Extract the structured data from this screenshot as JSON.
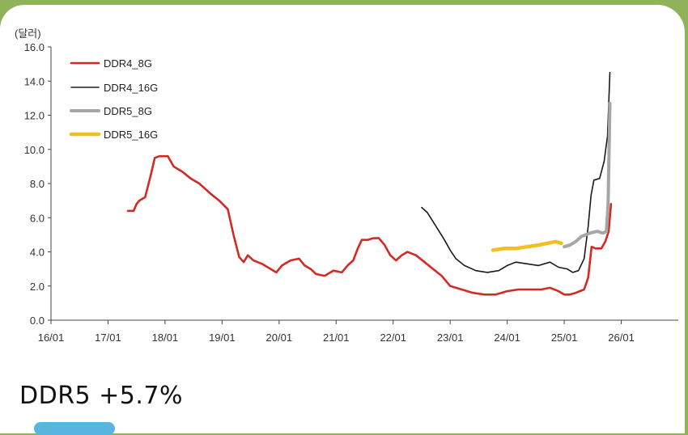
{
  "caption": "DDR5 +5.7%",
  "chart_data": {
    "type": "line",
    "unit_label": "(달러)",
    "xlabel": "",
    "ylabel": "",
    "x_tick_labels": [
      "16/01",
      "17/01",
      "18/01",
      "19/01",
      "20/01",
      "21/01",
      "22/01",
      "23/01",
      "24/01",
      "25/01",
      "26/01"
    ],
    "xlim": [
      2016.0,
      2027.0
    ],
    "y_tick_labels": [
      "0.0",
      "2.0",
      "4.0",
      "6.0",
      "8.0",
      "10.0",
      "12.0",
      "14.0",
      "16.0"
    ],
    "ylim": [
      0,
      16
    ],
    "grid": false,
    "legend_position": "top-left",
    "series": [
      {
        "name": "DDR4_8G",
        "color": "#d42a24",
        "points": [
          [
            2017.35,
            6.4
          ],
          [
            2017.45,
            6.4
          ],
          [
            2017.5,
            6.8
          ],
          [
            2017.55,
            7.0
          ],
          [
            2017.65,
            7.2
          ],
          [
            2017.75,
            8.5
          ],
          [
            2017.82,
            9.5
          ],
          [
            2017.9,
            9.6
          ],
          [
            2018.05,
            9.6
          ],
          [
            2018.15,
            9.0
          ],
          [
            2018.3,
            8.7
          ],
          [
            2018.45,
            8.3
          ],
          [
            2018.6,
            8.0
          ],
          [
            2018.8,
            7.4
          ],
          [
            2018.95,
            7.0
          ],
          [
            2019.1,
            6.5
          ],
          [
            2019.2,
            5.0
          ],
          [
            2019.3,
            3.7
          ],
          [
            2019.38,
            3.4
          ],
          [
            2019.45,
            3.8
          ],
          [
            2019.55,
            3.5
          ],
          [
            2019.7,
            3.3
          ],
          [
            2019.85,
            3.0
          ],
          [
            2019.95,
            2.8
          ],
          [
            2020.05,
            3.2
          ],
          [
            2020.2,
            3.5
          ],
          [
            2020.35,
            3.6
          ],
          [
            2020.45,
            3.2
          ],
          [
            2020.55,
            3.0
          ],
          [
            2020.65,
            2.7
          ],
          [
            2020.8,
            2.6
          ],
          [
            2020.95,
            2.9
          ],
          [
            2021.1,
            2.8
          ],
          [
            2021.2,
            3.2
          ],
          [
            2021.3,
            3.5
          ],
          [
            2021.38,
            4.2
          ],
          [
            2021.45,
            4.7
          ],
          [
            2021.55,
            4.7
          ],
          [
            2021.65,
            4.8
          ],
          [
            2021.75,
            4.8
          ],
          [
            2021.85,
            4.4
          ],
          [
            2021.95,
            3.8
          ],
          [
            2022.05,
            3.5
          ],
          [
            2022.15,
            3.8
          ],
          [
            2022.25,
            4.0
          ],
          [
            2022.4,
            3.8
          ],
          [
            2022.55,
            3.4
          ],
          [
            2022.7,
            3.0
          ],
          [
            2022.85,
            2.6
          ],
          [
            2023.0,
            2.0
          ],
          [
            2023.2,
            1.8
          ],
          [
            2023.4,
            1.6
          ],
          [
            2023.6,
            1.5
          ],
          [
            2023.8,
            1.5
          ],
          [
            2024.0,
            1.7
          ],
          [
            2024.2,
            1.8
          ],
          [
            2024.4,
            1.8
          ],
          [
            2024.6,
            1.8
          ],
          [
            2024.75,
            1.9
          ],
          [
            2024.9,
            1.7
          ],
          [
            2025.0,
            1.5
          ],
          [
            2025.1,
            1.5
          ],
          [
            2025.2,
            1.6
          ],
          [
            2025.35,
            1.8
          ],
          [
            2025.42,
            2.5
          ],
          [
            2025.48,
            4.3
          ],
          [
            2025.55,
            4.2
          ],
          [
            2025.65,
            4.2
          ],
          [
            2025.72,
            4.6
          ],
          [
            2025.78,
            5.2
          ],
          [
            2025.82,
            6.8
          ]
        ]
      },
      {
        "name": "DDR4_16G",
        "color": "#1a1a1a",
        "points": [
          [
            2022.5,
            6.6
          ],
          [
            2022.6,
            6.3
          ],
          [
            2022.75,
            5.5
          ],
          [
            2022.9,
            4.7
          ],
          [
            2023.0,
            4.1
          ],
          [
            2023.1,
            3.6
          ],
          [
            2023.25,
            3.2
          ],
          [
            2023.45,
            2.9
          ],
          [
            2023.65,
            2.8
          ],
          [
            2023.85,
            2.9
          ],
          [
            2024.0,
            3.2
          ],
          [
            2024.15,
            3.4
          ],
          [
            2024.35,
            3.3
          ],
          [
            2024.55,
            3.2
          ],
          [
            2024.75,
            3.4
          ],
          [
            2024.9,
            3.1
          ],
          [
            2025.05,
            3.0
          ],
          [
            2025.15,
            2.8
          ],
          [
            2025.25,
            2.9
          ],
          [
            2025.35,
            3.6
          ],
          [
            2025.42,
            5.5
          ],
          [
            2025.47,
            7.3
          ],
          [
            2025.52,
            8.2
          ],
          [
            2025.62,
            8.3
          ],
          [
            2025.7,
            9.3
          ],
          [
            2025.76,
            10.8
          ],
          [
            2025.8,
            14.5
          ]
        ]
      },
      {
        "name": "DDR5_8G",
        "color": "#a6a6a6",
        "points": [
          [
            2025.0,
            4.3
          ],
          [
            2025.1,
            4.4
          ],
          [
            2025.2,
            4.6
          ],
          [
            2025.3,
            4.9
          ],
          [
            2025.45,
            5.1
          ],
          [
            2025.58,
            5.2
          ],
          [
            2025.68,
            5.1
          ],
          [
            2025.74,
            5.2
          ],
          [
            2025.77,
            6.8
          ],
          [
            2025.8,
            12.7
          ]
        ]
      },
      {
        "name": "DDR5_16G",
        "color": "#f0c020",
        "points": [
          [
            2023.75,
            4.1
          ],
          [
            2023.95,
            4.2
          ],
          [
            2024.15,
            4.2
          ],
          [
            2024.35,
            4.3
          ],
          [
            2024.55,
            4.4
          ],
          [
            2024.7,
            4.5
          ],
          [
            2024.85,
            4.6
          ],
          [
            2024.95,
            4.5
          ]
        ]
      }
    ]
  }
}
